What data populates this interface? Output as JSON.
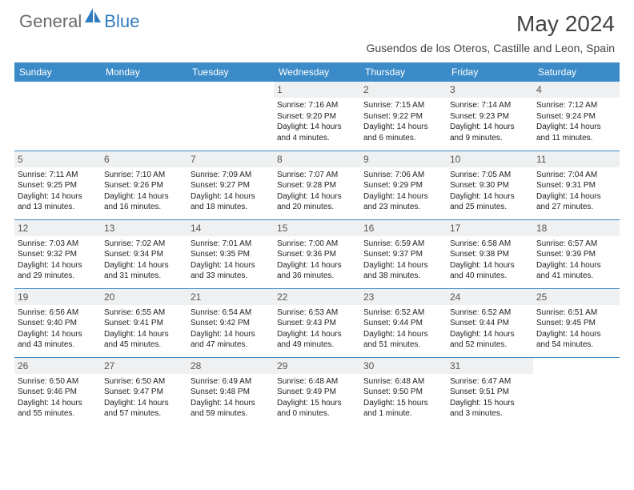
{
  "logo": {
    "general": "General",
    "blue": "Blue"
  },
  "title": "May 2024",
  "location": "Gusendos de los Oteros, Castille and Leon, Spain",
  "colors": {
    "header_bg": "#3B8BC8",
    "header_text": "#ffffff",
    "daynum_bg": "#eef0f1",
    "border": "#3B8BC8",
    "logo_gray": "#6a6a6a",
    "logo_blue": "#2f7bbf"
  },
  "weekdays": [
    "Sunday",
    "Monday",
    "Tuesday",
    "Wednesday",
    "Thursday",
    "Friday",
    "Saturday"
  ],
  "weeks": [
    [
      null,
      null,
      null,
      {
        "d": "1",
        "sr": "7:16 AM",
        "ss": "9:20 PM",
        "dl": "14 hours and 4 minutes."
      },
      {
        "d": "2",
        "sr": "7:15 AM",
        "ss": "9:22 PM",
        "dl": "14 hours and 6 minutes."
      },
      {
        "d": "3",
        "sr": "7:14 AM",
        "ss": "9:23 PM",
        "dl": "14 hours and 9 minutes."
      },
      {
        "d": "4",
        "sr": "7:12 AM",
        "ss": "9:24 PM",
        "dl": "14 hours and 11 minutes."
      }
    ],
    [
      {
        "d": "5",
        "sr": "7:11 AM",
        "ss": "9:25 PM",
        "dl": "14 hours and 13 minutes."
      },
      {
        "d": "6",
        "sr": "7:10 AM",
        "ss": "9:26 PM",
        "dl": "14 hours and 16 minutes."
      },
      {
        "d": "7",
        "sr": "7:09 AM",
        "ss": "9:27 PM",
        "dl": "14 hours and 18 minutes."
      },
      {
        "d": "8",
        "sr": "7:07 AM",
        "ss": "9:28 PM",
        "dl": "14 hours and 20 minutes."
      },
      {
        "d": "9",
        "sr": "7:06 AM",
        "ss": "9:29 PM",
        "dl": "14 hours and 23 minutes."
      },
      {
        "d": "10",
        "sr": "7:05 AM",
        "ss": "9:30 PM",
        "dl": "14 hours and 25 minutes."
      },
      {
        "d": "11",
        "sr": "7:04 AM",
        "ss": "9:31 PM",
        "dl": "14 hours and 27 minutes."
      }
    ],
    [
      {
        "d": "12",
        "sr": "7:03 AM",
        "ss": "9:32 PM",
        "dl": "14 hours and 29 minutes."
      },
      {
        "d": "13",
        "sr": "7:02 AM",
        "ss": "9:34 PM",
        "dl": "14 hours and 31 minutes."
      },
      {
        "d": "14",
        "sr": "7:01 AM",
        "ss": "9:35 PM",
        "dl": "14 hours and 33 minutes."
      },
      {
        "d": "15",
        "sr": "7:00 AM",
        "ss": "9:36 PM",
        "dl": "14 hours and 36 minutes."
      },
      {
        "d": "16",
        "sr": "6:59 AM",
        "ss": "9:37 PM",
        "dl": "14 hours and 38 minutes."
      },
      {
        "d": "17",
        "sr": "6:58 AM",
        "ss": "9:38 PM",
        "dl": "14 hours and 40 minutes."
      },
      {
        "d": "18",
        "sr": "6:57 AM",
        "ss": "9:39 PM",
        "dl": "14 hours and 41 minutes."
      }
    ],
    [
      {
        "d": "19",
        "sr": "6:56 AM",
        "ss": "9:40 PM",
        "dl": "14 hours and 43 minutes."
      },
      {
        "d": "20",
        "sr": "6:55 AM",
        "ss": "9:41 PM",
        "dl": "14 hours and 45 minutes."
      },
      {
        "d": "21",
        "sr": "6:54 AM",
        "ss": "9:42 PM",
        "dl": "14 hours and 47 minutes."
      },
      {
        "d": "22",
        "sr": "6:53 AM",
        "ss": "9:43 PM",
        "dl": "14 hours and 49 minutes."
      },
      {
        "d": "23",
        "sr": "6:52 AM",
        "ss": "9:44 PM",
        "dl": "14 hours and 51 minutes."
      },
      {
        "d": "24",
        "sr": "6:52 AM",
        "ss": "9:44 PM",
        "dl": "14 hours and 52 minutes."
      },
      {
        "d": "25",
        "sr": "6:51 AM",
        "ss": "9:45 PM",
        "dl": "14 hours and 54 minutes."
      }
    ],
    [
      {
        "d": "26",
        "sr": "6:50 AM",
        "ss": "9:46 PM",
        "dl": "14 hours and 55 minutes."
      },
      {
        "d": "27",
        "sr": "6:50 AM",
        "ss": "9:47 PM",
        "dl": "14 hours and 57 minutes."
      },
      {
        "d": "28",
        "sr": "6:49 AM",
        "ss": "9:48 PM",
        "dl": "14 hours and 59 minutes."
      },
      {
        "d": "29",
        "sr": "6:48 AM",
        "ss": "9:49 PM",
        "dl": "15 hours and 0 minutes."
      },
      {
        "d": "30",
        "sr": "6:48 AM",
        "ss": "9:50 PM",
        "dl": "15 hours and 1 minute."
      },
      {
        "d": "31",
        "sr": "6:47 AM",
        "ss": "9:51 PM",
        "dl": "15 hours and 3 minutes."
      },
      null
    ]
  ],
  "labels": {
    "sunrise": "Sunrise: ",
    "sunset": "Sunset: ",
    "daylight": "Daylight: "
  }
}
